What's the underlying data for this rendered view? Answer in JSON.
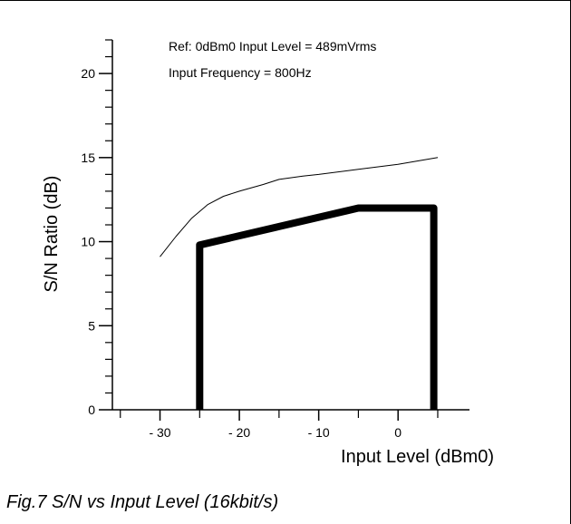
{
  "chart_data": {
    "type": "line",
    "caption": "Fig.7 S/N vs Input Level (16kbit/s)",
    "xlabel": "Input Level (dBm0)",
    "ylabel": "S/N Ratio (dB)",
    "xlim": [
      -36,
      9
    ],
    "ylim": [
      0,
      22
    ],
    "x_ticks": [
      -30,
      -20,
      -10,
      0
    ],
    "x_tick_labels": [
      "- 30",
      "- 20",
      "- 10",
      "0"
    ],
    "y_ticks": [
      0,
      5,
      10,
      15,
      20
    ],
    "y_tick_labels": [
      "0",
      "5",
      "10",
      "15",
      "20"
    ],
    "annotations": [
      "Ref: 0dBm0 Input Level = 489mVrms",
      "Input Frequency = 800Hz"
    ],
    "series": [
      {
        "style": "thin",
        "x": [
          -30,
          -28,
          -26,
          -24,
          -22,
          -20,
          -17,
          -15,
          -12,
          -10,
          -5,
          0,
          5
        ],
        "y": [
          9.1,
          10.3,
          11.4,
          12.2,
          12.7,
          13.0,
          13.4,
          13.7,
          13.9,
          14.0,
          14.3,
          14.6,
          15.0
        ]
      },
      {
        "style": "thick",
        "x": [
          -25,
          -25,
          -15,
          -5,
          4.5,
          4.5
        ],
        "y": [
          0,
          9.8,
          10.9,
          12.0,
          12.0,
          0
        ]
      }
    ]
  }
}
